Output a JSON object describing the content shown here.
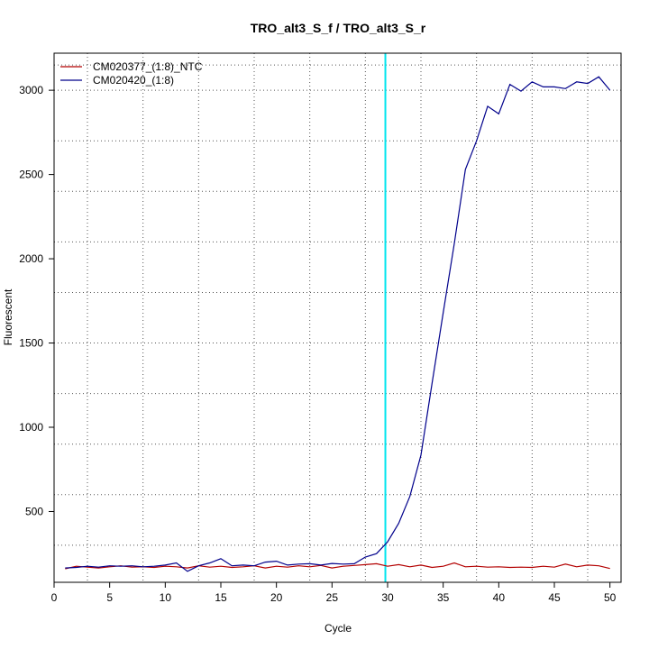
{
  "chart_data": {
    "type": "line",
    "title": "TRO_alt3_S_f / TRO_alt3_S_r",
    "xlabel": "Cycle",
    "ylabel": "Fluorescent",
    "xlim": [
      0,
      51
    ],
    "ylim": [
      80,
      3220
    ],
    "x_ticks": [
      0,
      5,
      10,
      15,
      20,
      25,
      30,
      35,
      40,
      45,
      50
    ],
    "y_ticks": [
      500,
      1000,
      1500,
      2000,
      2500,
      3000
    ],
    "grid": true,
    "grid_x": [
      3,
      8,
      13,
      18,
      23,
      28,
      33,
      38,
      43,
      48
    ],
    "grid_y": [
      300,
      600,
      900,
      1200,
      1500,
      1800,
      2100,
      2400,
      2700,
      3000,
      3150
    ],
    "threshold_x": 29.8,
    "threshold_color": "#00e5ee",
    "legend_position": "top-left",
    "series": [
      {
        "name": "CM020377_(1:8)_NTC",
        "color": "#b30000",
        "x": [
          1,
          2,
          3,
          4,
          5,
          6,
          7,
          8,
          9,
          10,
          11,
          12,
          13,
          14,
          15,
          16,
          17,
          18,
          19,
          20,
          21,
          22,
          23,
          24,
          25,
          26,
          27,
          28,
          29,
          30,
          31,
          32,
          33,
          34,
          35,
          36,
          37,
          38,
          39,
          40,
          41,
          42,
          43,
          44,
          45,
          46,
          47,
          48,
          49,
          50
        ],
        "values": [
          160,
          175,
          170,
          165,
          172,
          178,
          170,
          172,
          168,
          175,
          172,
          165,
          178,
          170,
          175,
          168,
          172,
          178,
          165,
          175,
          170,
          178,
          172,
          180,
          165,
          175,
          180,
          185,
          190,
          175,
          185,
          172,
          182,
          168,
          175,
          195,
          172,
          175,
          170,
          172,
          168,
          170,
          168,
          175,
          170,
          188,
          172,
          182,
          178,
          162
        ]
      },
      {
        "name": "CM020420_(1:8)",
        "color": "#00008b",
        "x": [
          1,
          2,
          3,
          4,
          5,
          6,
          7,
          8,
          9,
          10,
          11,
          12,
          13,
          14,
          15,
          16,
          17,
          18,
          19,
          20,
          21,
          22,
          23,
          24,
          25,
          26,
          27,
          28,
          29,
          30,
          31,
          32,
          33,
          34,
          35,
          36,
          37,
          38,
          39,
          40,
          41,
          42,
          43,
          44,
          45,
          46,
          47,
          48,
          49,
          50
        ],
        "values": [
          165,
          168,
          175,
          170,
          178,
          175,
          178,
          172,
          175,
          182,
          195,
          145,
          178,
          195,
          220,
          178,
          182,
          178,
          200,
          205,
          182,
          188,
          190,
          182,
          192,
          188,
          190,
          230,
          250,
          320,
          430,
          590,
          835,
          1260,
          1680,
          2090,
          2530,
          2700,
          2905,
          2860,
          3035,
          2995,
          3050,
          3020,
          3020,
          3010,
          3050,
          3040,
          3080,
          3000
        ]
      }
    ]
  }
}
